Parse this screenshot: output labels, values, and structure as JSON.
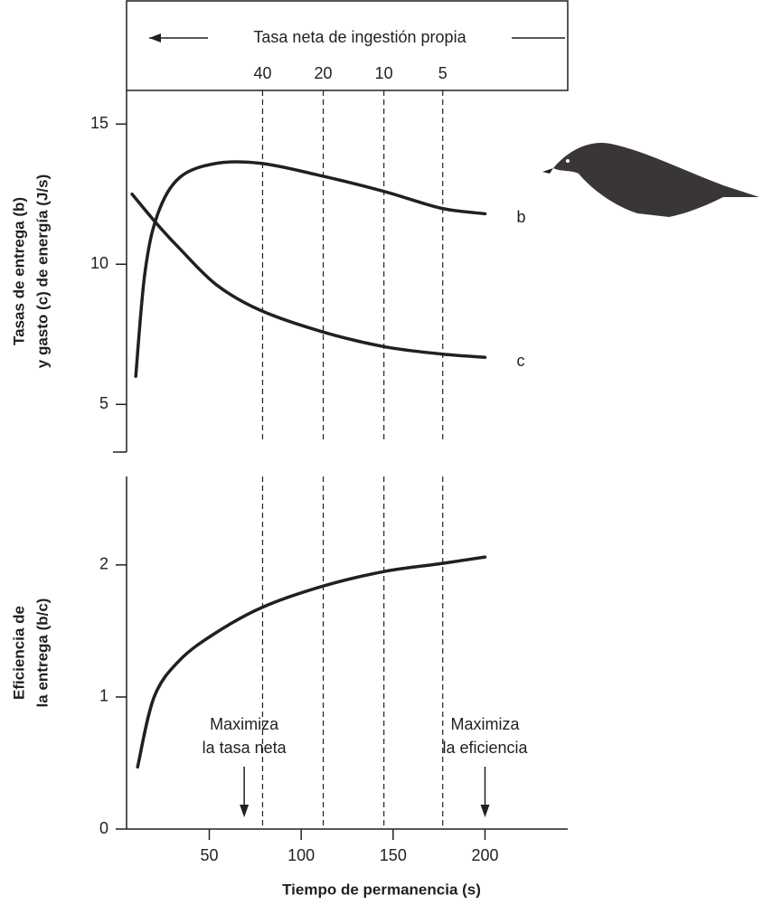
{
  "chart_data": [
    {
      "type": "line",
      "header": "Tasa neta de ingestión propia",
      "y_title": [
        "Tasas de entrega (b)",
        "y gasto (c) de energía (J/s)"
      ],
      "xlim": [
        5,
        245
      ],
      "ylim": [
        3.3,
        16.2
      ],
      "yticks": [
        5,
        10,
        15
      ],
      "x2ticks": [
        {
          "value": 79,
          "label": "40"
        },
        {
          "value": 112,
          "label": "20"
        },
        {
          "value": 145,
          "label": "10"
        },
        {
          "value": 177,
          "label": "5"
        }
      ],
      "color": "#231f20",
      "series": [
        {
          "name": "b",
          "x": [
            10,
            15,
            22,
            34,
            54,
            78,
            108,
            145,
            176,
            200
          ],
          "values": [
            6.0,
            9.7,
            11.8,
            13.1,
            13.6,
            13.6,
            13.2,
            12.6,
            12.0,
            11.8
          ]
        },
        {
          "name": "c",
          "x": [
            8,
            22,
            34,
            54,
            78,
            112,
            145,
            176,
            200
          ],
          "values": [
            12.5,
            11.4,
            10.55,
            9.26,
            8.35,
            7.58,
            7.06,
            6.8,
            6.68
          ]
        }
      ]
    },
    {
      "type": "line",
      "y_title": [
        "Eficiencia de",
        "la entrega (b/c)"
      ],
      "x_title": "Tiempo de permanencia (s)",
      "xlim": [
        5,
        245
      ],
      "xticks": [
        50,
        100,
        150,
        200
      ],
      "ylim": [
        0,
        2.67
      ],
      "yticks": [
        0,
        1,
        2
      ],
      "color": "#231f20",
      "series": [
        {
          "x": [
            11,
            20,
            34,
            54,
            79,
            112,
            145,
            176,
            200
          ],
          "values": [
            0.47,
            1.0,
            1.28,
            1.49,
            1.68,
            1.84,
            1.95,
            2.01,
            2.06
          ]
        }
      ],
      "annotations": [
        {
          "text": [
            "Maximiza",
            "la tasa neta"
          ],
          "x": 69
        },
        {
          "text": [
            "Maximiza",
            "la eficiencia"
          ],
          "x": 200
        }
      ]
    }
  ]
}
